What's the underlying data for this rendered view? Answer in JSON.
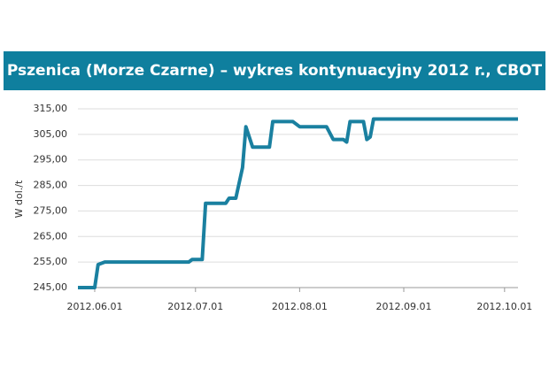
{
  "chart_data": {
    "type": "line",
    "title": "Pszenica (Morze Czarne) – wykres kontynuacyjny 2012 r., CBOT",
    "y_label": "W dol./t",
    "x": [
      "2012.05.27",
      "2012.06.01",
      "2012.06.02",
      "2012.06.04",
      "2012.06.29",
      "2012.06.30",
      "2012.07.03",
      "2012.07.04",
      "2012.07.10",
      "2012.07.11",
      "2012.07.13",
      "2012.07.15",
      "2012.07.16",
      "2012.07.18",
      "2012.07.23",
      "2012.07.24",
      "2012.07.30",
      "2012.08.01",
      "2012.08.09",
      "2012.08.11",
      "2012.08.14",
      "2012.08.15",
      "2012.08.16",
      "2012.08.20",
      "2012.08.21",
      "2012.08.22",
      "2012.08.23",
      "2012.10.05"
    ],
    "series": [
      {
        "name": "Pszenica",
        "color": "#1a80a0",
        "values": [
          245,
          245,
          254,
          255,
          255,
          256,
          256,
          278,
          278,
          280,
          280,
          292,
          308,
          300,
          300,
          310,
          310,
          308,
          308,
          303,
          303,
          302,
          310,
          310,
          303,
          304,
          311,
          311
        ]
      }
    ],
    "xlim": [
      "2012.05.27",
      "2012.10.05"
    ],
    "xticks": [
      "2012.06.01",
      "2012.07.01",
      "2012.08.01",
      "2012.09.01",
      "2012.10.01"
    ],
    "ylim": [
      245,
      315
    ],
    "yticks": [
      {
        "value": 245,
        "label": "245,00"
      },
      {
        "value": 255,
        "label": "255,00"
      },
      {
        "value": 265,
        "label": "265,00"
      },
      {
        "value": 275,
        "label": "275,00"
      },
      {
        "value": 285,
        "label": "285,00"
      },
      {
        "value": 295,
        "label": "295,00"
      },
      {
        "value": 305,
        "label": "305,00"
      },
      {
        "value": 315,
        "label": "315,00"
      }
    ],
    "grid": true
  }
}
